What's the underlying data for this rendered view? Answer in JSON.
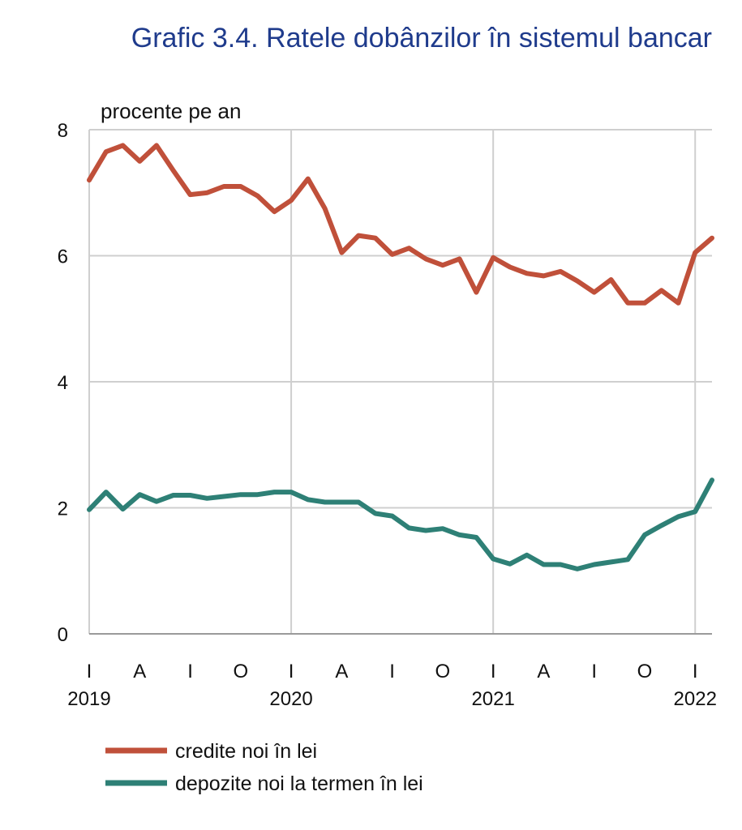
{
  "chart_data": {
    "type": "line",
    "title": "Grafic 3.4. Ratele dobânzilor în sistemul bancar",
    "unit_label": "procente pe an",
    "ylim": [
      0,
      8
    ],
    "yticks": [
      "0",
      "2",
      "4",
      "6",
      "8"
    ],
    "grid": true,
    "legend_position": "bottom-left",
    "colors": {
      "credite": "#c0503a",
      "depozite": "#2e8076",
      "grid": "#cfcfcf",
      "title": "#1f3b8c"
    },
    "x_tick_labels": [
      "I",
      "A",
      "I",
      "O",
      "I",
      "A",
      "I",
      "O",
      "I",
      "A",
      "I",
      "O",
      "I"
    ],
    "year_labels": [
      "2019",
      "2020",
      "2021",
      "2022"
    ],
    "x": [
      "2019-01",
      "2019-02",
      "2019-03",
      "2019-04",
      "2019-05",
      "2019-06",
      "2019-07",
      "2019-08",
      "2019-09",
      "2019-10",
      "2019-11",
      "2019-12",
      "2020-01",
      "2020-02",
      "2020-03",
      "2020-04",
      "2020-05",
      "2020-06",
      "2020-07",
      "2020-08",
      "2020-09",
      "2020-10",
      "2020-11",
      "2020-12",
      "2021-01",
      "2021-02",
      "2021-03",
      "2021-04",
      "2021-05",
      "2021-06",
      "2021-07",
      "2021-08",
      "2021-09",
      "2021-10",
      "2021-11",
      "2021-12",
      "2022-01",
      "2022-02"
    ],
    "series": [
      {
        "name": "credite noi în lei",
        "color": "#c0503a",
        "values": [
          7.2,
          7.65,
          7.75,
          7.5,
          7.75,
          7.35,
          6.97,
          7.0,
          7.1,
          7.1,
          6.95,
          6.7,
          6.88,
          7.22,
          6.75,
          6.05,
          6.32,
          6.28,
          6.02,
          6.12,
          5.95,
          5.85,
          5.95,
          5.42,
          5.97,
          5.82,
          5.72,
          5.68,
          5.75,
          5.6,
          5.42,
          5.62,
          5.25,
          5.25,
          5.45,
          5.25,
          6.05,
          6.28
        ]
      },
      {
        "name": "depozite noi la termen în lei",
        "color": "#2e8076",
        "values": [
          1.97,
          2.25,
          1.98,
          2.21,
          2.1,
          2.2,
          2.2,
          2.15,
          2.18,
          2.21,
          2.21,
          2.25,
          2.25,
          2.13,
          2.09,
          2.09,
          2.09,
          1.91,
          1.87,
          1.68,
          1.64,
          1.67,
          1.57,
          1.53,
          1.19,
          1.11,
          1.25,
          1.1,
          1.1,
          1.03,
          1.1,
          1.14,
          1.18,
          1.57,
          1.72,
          1.86,
          1.94,
          2.44
        ]
      }
    ]
  }
}
